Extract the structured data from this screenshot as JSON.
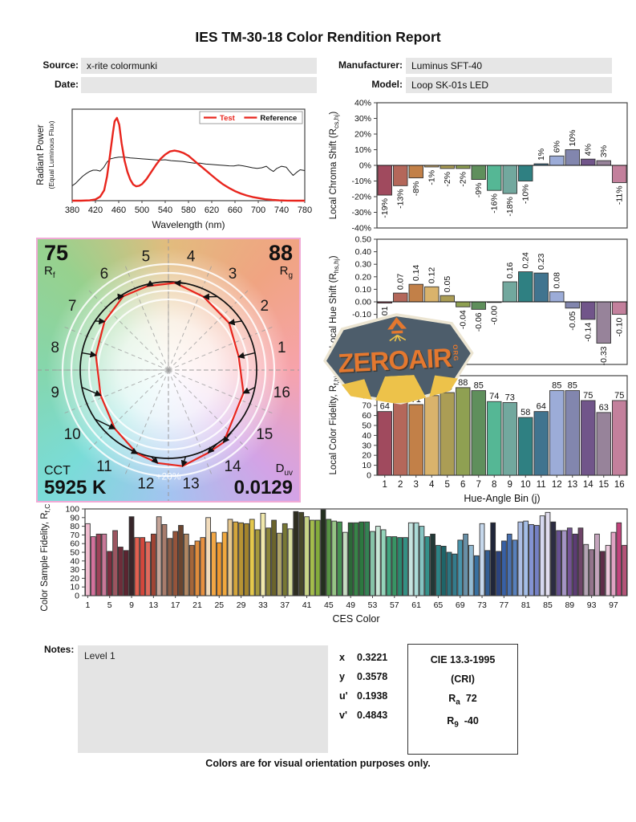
{
  "title": "IES TM-30-18 Color Rendition Report",
  "header": {
    "source_label": "Source:",
    "source_value": "x-rite colormunki",
    "date_label": "Date:",
    "date_value": "",
    "manufacturer_label": "Manufacturer:",
    "manufacturer_value": "Luminus SFT-40",
    "model_label": "Model:",
    "model_value": "Loop SK-01s LED"
  },
  "watermark": {
    "text": "ZEROAIR",
    "suffix": "ORG"
  },
  "notes": {
    "label": "Notes:",
    "value": "Level 1"
  },
  "chromaticity": {
    "rows": [
      {
        "label": "x",
        "value": "0.3221"
      },
      {
        "label": "y",
        "value": "0.3578"
      },
      {
        "label": "u'",
        "value": "0.1938"
      },
      {
        "label": "v'",
        "value": "0.4843"
      }
    ]
  },
  "cie_box": {
    "title": "CIE 13.3-1995",
    "subtitle": "(CRI)",
    "ra_main": "R",
    "ra_sub": "a",
    "ra_value": "72",
    "r9_main": "R",
    "r9_sub": "9",
    "r9_value": "-40"
  },
  "footer": "Colors are for visual orientation purposes only.",
  "bin_colors": [
    "#a04a5e",
    "#b4675a",
    "#c28048",
    "#d9b36c",
    "#ab9d55",
    "#8fa052",
    "#5f8f5c",
    "#55b795",
    "#72a89e",
    "#2f8082",
    "#40748f",
    "#9cacd8",
    "#8286ae",
    "#71558a",
    "#97839a",
    "#c3809c"
  ],
  "chart_data": [
    {
      "id": "spd",
      "type": "line",
      "xlabel": "Wavelength (nm)",
      "ylabel_lines": [
        "Radiant Power",
        "(Equal Luminous Flux)"
      ],
      "xlim": [
        380,
        780
      ],
      "ylim": [
        0,
        1.05
      ],
      "xticks": [
        380,
        420,
        460,
        500,
        540,
        580,
        620,
        660,
        700,
        740,
        780
      ],
      "legend": [
        {
          "label": "Test",
          "swatch": "#e8251d",
          "text_color": "#e8251d"
        },
        {
          "label": "Reference",
          "swatch": "#e8251d",
          "text_color": "#111111"
        }
      ],
      "series": [
        {
          "name": "Test",
          "color": "#e8251d",
          "width": 2.4,
          "x": [
            380,
            395,
            410,
            420,
            428,
            435,
            440,
            445,
            450,
            453,
            457,
            461,
            465,
            470,
            475,
            480,
            485,
            490,
            495,
            500,
            508,
            516,
            524,
            532,
            540,
            548,
            556,
            564,
            572,
            580,
            588,
            596,
            604,
            612,
            620,
            630,
            640,
            650,
            660,
            670,
            680,
            690,
            700,
            712,
            724,
            736,
            750,
            765,
            780
          ],
          "y": [
            0,
            0,
            0.004,
            0.015,
            0.045,
            0.12,
            0.28,
            0.52,
            0.78,
            0.91,
            0.95,
            0.87,
            0.66,
            0.46,
            0.33,
            0.24,
            0.185,
            0.165,
            0.17,
            0.19,
            0.25,
            0.33,
            0.41,
            0.48,
            0.53,
            0.565,
            0.575,
            0.565,
            0.545,
            0.515,
            0.47,
            0.425,
            0.38,
            0.335,
            0.29,
            0.235,
            0.185,
            0.145,
            0.11,
            0.082,
            0.06,
            0.042,
            0.03,
            0.017,
            0.009,
            0.004,
            0.001,
            0,
            0
          ]
        },
        {
          "name": "Reference",
          "color": "#1a1a1a",
          "width": 1,
          "x": [
            380,
            386,
            392,
            398,
            404,
            410,
            416,
            422,
            428,
            434,
            440,
            446,
            452,
            460,
            470,
            480,
            490,
            500,
            510,
            520,
            530,
            540,
            550,
            560,
            570,
            580,
            590,
            600,
            610,
            620,
            630,
            640,
            650,
            658,
            666,
            674,
            682,
            690,
            698,
            706,
            714,
            720,
            726,
            732,
            740,
            748,
            754,
            760,
            766,
            772,
            780
          ],
          "y": [
            0.17,
            0.2,
            0.24,
            0.28,
            0.31,
            0.335,
            0.35,
            0.35,
            0.34,
            0.38,
            0.445,
            0.48,
            0.49,
            0.5,
            0.5,
            0.49,
            0.485,
            0.48,
            0.475,
            0.47,
            0.465,
            0.47,
            0.46,
            0.455,
            0.45,
            0.44,
            0.43,
            0.43,
            0.42,
            0.415,
            0.41,
            0.405,
            0.4,
            0.398,
            0.407,
            0.4,
            0.39,
            0.378,
            0.37,
            0.378,
            0.395,
            0.36,
            0.335,
            0.37,
            0.395,
            0.385,
            0.335,
            0.29,
            0.325,
            0.355,
            0.345
          ]
        }
      ]
    },
    {
      "id": "chroma",
      "type": "bar",
      "ylabel": {
        "pre": "Local Chroma Shift (R",
        "sub": "cs,hj",
        "post": ")"
      },
      "ylim": [
        -40,
        40
      ],
      "ytick_vals": [
        40,
        30,
        20,
        10,
        0,
        -10,
        -20,
        -30,
        -40
      ],
      "ytick_labels": [
        "40%",
        "30%",
        "20%",
        "10%",
        "0%",
        "-10%",
        "-20%",
        "-30%",
        "-40%"
      ],
      "categories": [
        1,
        2,
        3,
        4,
        5,
        6,
        7,
        8,
        9,
        10,
        11,
        12,
        13,
        14,
        15,
        16
      ],
      "values": [
        -19,
        -13,
        -8,
        -1,
        -2,
        -2,
        -9,
        -16,
        -18,
        -10,
        1,
        6,
        10,
        4,
        3,
        -11
      ],
      "labels": [
        "-19%",
        "-13%",
        "-8%",
        "-1%",
        "-2%",
        "-2%",
        "-9%",
        "-16%",
        "-18%",
        "-10%",
        "1%",
        "6%",
        "10%",
        "4%",
        "3%",
        "-11%"
      ],
      "label_rotate": true,
      "use_bin_colors": true
    },
    {
      "id": "hue",
      "type": "bar",
      "ylabel": {
        "pre": "Local Hue Shift (R",
        "sub": "hs,hj",
        "post": ")"
      },
      "ylim": [
        -0.5,
        0.5
      ],
      "ytick_vals": [
        0.5,
        0.4,
        0.3,
        0.2,
        0.1,
        0,
        -0.1,
        -0.2,
        -0.3,
        -0.4,
        -0.5
      ],
      "ytick_labels": [
        "0.50",
        "0.40",
        "0.30",
        "0.20",
        "0.10",
        "0.00",
        "-0.10",
        "-0.20",
        "-0.30",
        "-0.40",
        "-0.50"
      ],
      "categories": [
        1,
        2,
        3,
        4,
        5,
        6,
        7,
        8,
        9,
        10,
        11,
        12,
        13,
        14,
        15,
        16
      ],
      "values": [
        -0.01,
        0.07,
        0.14,
        0.12,
        0.05,
        -0.04,
        -0.06,
        -0.005,
        0.16,
        0.24,
        0.23,
        0.08,
        -0.05,
        -0.14,
        -0.33,
        -0.1
      ],
      "labels": [
        "-0.01",
        "0.07",
        "0.14",
        "0.12",
        "0.05",
        "-0.04",
        "-0.06",
        "-0.00",
        "0.16",
        "0.24",
        "0.23",
        "0.08",
        "-0.05",
        "-0.14",
        "-0.33",
        "-0.10"
      ],
      "label_rotate": true,
      "use_bin_colors": true
    },
    {
      "id": "fid",
      "type": "bar",
      "ylabel": {
        "pre": "Local Color Fidelity, R",
        "sub": "f,hj",
        "post": ""
      },
      "xlabel": "Hue-Angle Bin (j)",
      "ylim": [
        0,
        100
      ],
      "ytick_vals": [
        100,
        90,
        80,
        70,
        60,
        50,
        40,
        30,
        20,
        10,
        0
      ],
      "ytick_labels": [
        "100",
        "90",
        "80",
        "70",
        "60",
        "50",
        "40",
        "30",
        "20",
        "10",
        "0"
      ],
      "categories": [
        1,
        2,
        3,
        4,
        5,
        6,
        7,
        8,
        9,
        10,
        11,
        12,
        13,
        14,
        15,
        16
      ],
      "xtick_labels": [
        "1",
        "2",
        "3",
        "4",
        "5",
        "6",
        "7",
        "8",
        "9",
        "10",
        "11",
        "12",
        "13",
        "14",
        "15",
        "16"
      ],
      "values": [
        64,
        75,
        71,
        80,
        83,
        88,
        85,
        74,
        73,
        58,
        64,
        85,
        85,
        75,
        63,
        75
      ],
      "labels": [
        "64",
        "75",
        "71",
        "80",
        "83",
        "88",
        "85",
        "74",
        "73",
        "58",
        "64",
        "85",
        "85",
        "75",
        "63",
        "75"
      ],
      "label_rotate": false,
      "use_bin_colors": true
    },
    {
      "id": "ces",
      "type": "bar",
      "ylabel": {
        "pre": "Color Sample Fidelity, R",
        "sub": "f,CESi",
        "post": ""
      },
      "xlabel": "CES Color",
      "ylim": [
        0,
        100
      ],
      "ytick_vals": [
        100,
        90,
        80,
        70,
        60,
        50,
        40,
        30,
        20,
        10,
        0
      ],
      "ytick_labels": [
        "100",
        "90",
        "80",
        "70",
        "60",
        "50",
        "40",
        "30",
        "20",
        "10",
        "0"
      ],
      "xtick_vals": [
        1,
        5,
        9,
        13,
        17,
        21,
        25,
        29,
        33,
        37,
        41,
        45,
        49,
        53,
        57,
        61,
        65,
        69,
        73,
        77,
        81,
        85,
        89,
        93,
        97
      ],
      "values": [
        83,
        68,
        71,
        71,
        51,
        75,
        56,
        52,
        91,
        67,
        67,
        62,
        71,
        91,
        82,
        66,
        74,
        81,
        71,
        58,
        63,
        67,
        90,
        73,
        61,
        73,
        88,
        85,
        84,
        83,
        88,
        76,
        95,
        78,
        87,
        72,
        83,
        77,
        97,
        96,
        91,
        87,
        87,
        99,
        88,
        86,
        85,
        73,
        84,
        84,
        85,
        85,
        74,
        80,
        76,
        68,
        68,
        67,
        67,
        84,
        84,
        80,
        68,
        71,
        58,
        57,
        50,
        48,
        64,
        71,
        58,
        46,
        83,
        52,
        84,
        51,
        63,
        71,
        64,
        85,
        86,
        82,
        81,
        92,
        96,
        85,
        75,
        75,
        78,
        71,
        78,
        59,
        53,
        71,
        51,
        58,
        73,
        84,
        58
      ],
      "colors": [
        "#f0bdd0",
        "#d4719c",
        "#9e4258",
        "#c87898",
        "#7c2d3e",
        "#9b5560",
        "#6e2d3a",
        "#5c2430",
        "#38262a",
        "#e06050",
        "#d4473c",
        "#e06a5c",
        "#a04434",
        "#c4a498",
        "#a87c6c",
        "#8a5c46",
        "#96543a",
        "#6b452f",
        "#b08662",
        "#a4663a",
        "#df8c3c",
        "#e89140",
        "#f2dcbc",
        "#f2a644",
        "#ee9830",
        "#f0a83e",
        "#e6c890",
        "#d4a63c",
        "#b89434",
        "#a4842c",
        "#e4c84c",
        "#a4983c",
        "#f0e8ac",
        "#8a8438",
        "#6b642c",
        "#aea468",
        "#787834",
        "#d6dc9c",
        "#2e2e20",
        "#48482a",
        "#c8d488",
        "#a4bc4c",
        "#84ac3c",
        "#24301f",
        "#579444",
        "#96c486",
        "#459252",
        "#c6dcc2",
        "#2c6838",
        "#388448",
        "#2c7840",
        "#348254",
        "#86c4a8",
        "#c8e6d6",
        "#94d4ba",
        "#40a47e",
        "#389464",
        "#2c8870",
        "#349084",
        "#c6e4e0",
        "#acdcd8",
        "#86c4c2",
        "#349089",
        "#223836",
        "#2c8486",
        "#1e6468",
        "#2c7480",
        "#347c8c",
        "#4894ac",
        "#6890a8",
        "#94bcd4",
        "#3870a0",
        "#c6d8ec",
        "#325e94",
        "#20263a",
        "#2c4480",
        "#3860a4",
        "#4870b0",
        "#5880bc",
        "#acbee4",
        "#a4bee8",
        "#8494d4",
        "#7480c4",
        "#d6d8f0",
        "#e2def0",
        "#2c2c42",
        "#685294",
        "#a494c4",
        "#745294",
        "#5c3c74",
        "#6e4468",
        "#b4a4b4",
        "#94748c",
        "#c4a4bc",
        "#5e2c48",
        "#ecc8dc",
        "#e0a2c2",
        "#c2437c",
        "#b45478"
      ]
    },
    {
      "id": "cvg",
      "type": "polar-vector",
      "rf": "75",
      "rf_main": "R",
      "rf_sub": "f",
      "rg": "88",
      "rg_main": "R",
      "rg_sub": "g",
      "cct_label": "CCT",
      "cct_value": "5925 K",
      "duv_main": "D",
      "duv_sub": "uv",
      "duv_value": "0.0129",
      "ring_label": "+20%",
      "bin_labels": [
        "1",
        "2",
        "3",
        "4",
        "5",
        "6",
        "7",
        "8",
        "9",
        "10",
        "11",
        "12",
        "13",
        "14",
        "15",
        "16"
      ],
      "chroma_shift_pct": [
        -19,
        -13,
        -8,
        -1,
        -2,
        -2,
        -9,
        -16,
        -18,
        -10,
        1,
        6,
        10,
        4,
        3,
        -11
      ],
      "hue_shift_rad": [
        -0.01,
        0.07,
        0.14,
        0.12,
        0.05,
        -0.04,
        -0.06,
        -0.005,
        0.16,
        0.24,
        0.23,
        0.08,
        -0.05,
        -0.14,
        -0.33,
        -0.1
      ]
    }
  ]
}
